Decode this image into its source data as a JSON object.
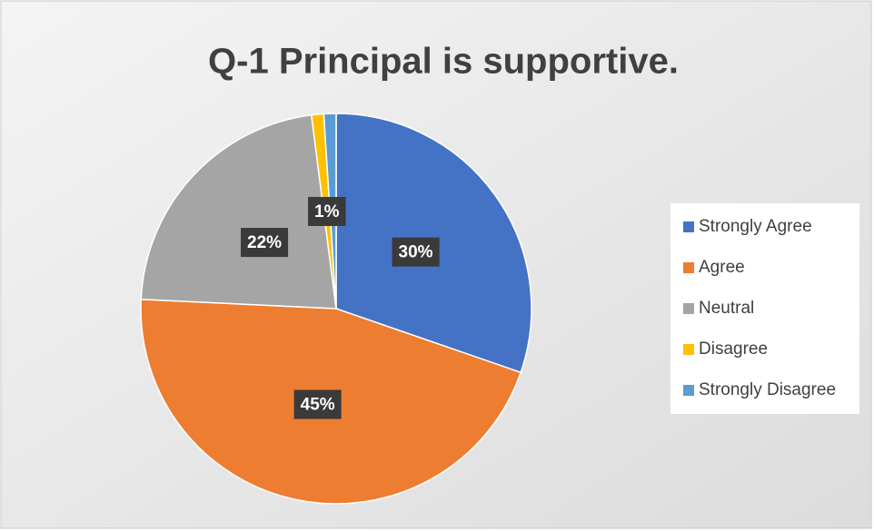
{
  "chart_data": {
    "type": "pie",
    "title": "Q-1 Principal is supportive.",
    "categories": [
      "Strongly Agree",
      "Agree",
      "Neutral",
      "Disagree",
      "Strongly Disagree"
    ],
    "values": [
      30,
      45,
      22,
      1,
      1
    ],
    "value_labels": [
      "30%",
      "45%",
      "22%",
      "1%",
      null
    ],
    "colors": [
      "#4472c4",
      "#ed7d31",
      "#a5a5a5",
      "#ffc000",
      "#5b9bd5"
    ],
    "legend": "right"
  }
}
